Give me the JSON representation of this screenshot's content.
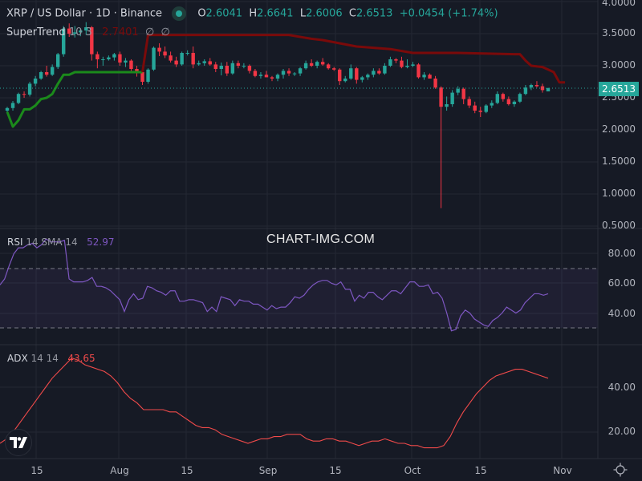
{
  "header": {
    "symbol_title": "XRP / US Dollar · 1D · Binance",
    "ohlc": {
      "open_label": "O",
      "open": "2.6041",
      "high_label": "H",
      "high": "2.6641",
      "low_label": "L",
      "low": "2.6006",
      "close_label": "C",
      "close": "2.6513",
      "change": "+0.0454 (+1.74%)"
    }
  },
  "indicators": {
    "supertrend": {
      "name": "SuperTrend",
      "params": "10 3",
      "value": "2.7401",
      "extra1": "∅",
      "extra2": "∅"
    },
    "rsi": {
      "name": "RSI",
      "params": "14 SMA 14",
      "value": "52.97"
    },
    "adx": {
      "name": "ADX",
      "params": "14 14",
      "value": "43.65"
    }
  },
  "price_axis": [
    "4.0000",
    "3.5000",
    "3.0000",
    "2.5000",
    "2.0000",
    "1.5000",
    "1.0000",
    "0.5000"
  ],
  "last_price_tag": "2.6513",
  "rsi_axis": [
    "80.00",
    "60.00",
    "40.00"
  ],
  "adx_axis": [
    "40.00",
    "20.00"
  ],
  "time_axis": [
    "15",
    "Aug",
    "15",
    "Sep",
    "15",
    "Oct",
    "15",
    "Nov"
  ],
  "watermark": "CHART-IMG.COM",
  "colors": {
    "up": "#26a69a",
    "down": "#f23645",
    "supertrend_up": "#1b8a1b",
    "supertrend_down": "#7a0a0a",
    "rsi": "#7e57c2",
    "adx": "#f04a4a",
    "background": "#161a25"
  },
  "chart_data": [
    {
      "type": "candlestick",
      "title": "XRP / US Dollar · 1D · Binance",
      "xlabel": "",
      "ylabel": "Price (USD)",
      "ylim": [
        0.5,
        4.0
      ],
      "x_ticks": [
        "15",
        "Aug",
        "15",
        "Sep",
        "15",
        "Oct",
        "15",
        "Nov"
      ],
      "last_close": 2.6513,
      "ohlc": [
        [
          2.3,
          2.36,
          2.25,
          2.34
        ],
        [
          2.34,
          2.45,
          2.3,
          2.42
        ],
        [
          2.42,
          2.58,
          2.4,
          2.56
        ],
        [
          2.56,
          2.6,
          2.5,
          2.55
        ],
        [
          2.55,
          2.75,
          2.52,
          2.72
        ],
        [
          2.72,
          2.84,
          2.68,
          2.8
        ],
        [
          2.8,
          2.92,
          2.78,
          2.9
        ],
        [
          2.9,
          3.0,
          2.83,
          2.86
        ],
        [
          2.86,
          3.02,
          2.84,
          2.98
        ],
        [
          2.98,
          3.2,
          2.95,
          3.18
        ],
        [
          3.18,
          3.62,
          3.14,
          3.58
        ],
        [
          3.58,
          3.66,
          3.45,
          3.5
        ],
        [
          3.5,
          3.62,
          3.44,
          3.52
        ],
        [
          3.52,
          3.58,
          3.46,
          3.55
        ],
        [
          3.55,
          3.68,
          3.48,
          3.6
        ],
        [
          3.6,
          3.62,
          3.08,
          3.18
        ],
        [
          3.18,
          3.22,
          2.96,
          3.1
        ],
        [
          3.1,
          3.14,
          3.0,
          3.1
        ],
        [
          3.1,
          3.16,
          3.08,
          3.13
        ],
        [
          3.13,
          3.2,
          3.08,
          3.18
        ],
        [
          3.18,
          3.22,
          3.0,
          3.05
        ],
        [
          3.05,
          3.12,
          2.98,
          3.08
        ],
        [
          3.08,
          3.1,
          2.92,
          2.95
        ],
        [
          2.95,
          3.0,
          2.83,
          2.9
        ],
        [
          2.9,
          2.98,
          2.7,
          2.75
        ],
        [
          2.75,
          2.96,
          2.72,
          2.94
        ],
        [
          2.94,
          3.3,
          2.92,
          3.28
        ],
        [
          3.28,
          3.35,
          3.15,
          3.22
        ],
        [
          3.22,
          3.3,
          3.12,
          3.16
        ],
        [
          3.16,
          3.22,
          3.05,
          3.08
        ],
        [
          3.08,
          3.14,
          2.98,
          3.02
        ],
        [
          3.02,
          3.22,
          3.0,
          3.2
        ],
        [
          3.2,
          3.24,
          3.16,
          3.2
        ],
        [
          3.2,
          3.3,
          2.96,
          3.02
        ],
        [
          3.02,
          3.08,
          3.0,
          3.04
        ],
        [
          3.04,
          3.1,
          3.0,
          3.07
        ],
        [
          3.07,
          3.12,
          3.0,
          3.02
        ],
        [
          3.02,
          3.06,
          2.9,
          2.95
        ],
        [
          2.95,
          3.05,
          2.85,
          3.0
        ],
        [
          3.0,
          3.06,
          2.84,
          2.88
        ],
        [
          2.88,
          3.08,
          2.86,
          3.04
        ],
        [
          3.04,
          3.08,
          2.96,
          3.0
        ],
        [
          3.0,
          3.04,
          2.96,
          3.0
        ],
        [
          3.0,
          3.02,
          2.88,
          2.92
        ],
        [
          2.92,
          2.95,
          2.82,
          2.84
        ],
        [
          2.84,
          2.9,
          2.8,
          2.86
        ],
        [
          2.86,
          2.92,
          2.82,
          2.82
        ],
        [
          2.82,
          2.84,
          2.76,
          2.8
        ],
        [
          2.8,
          2.88,
          2.76,
          2.86
        ],
        [
          2.86,
          2.95,
          2.8,
          2.92
        ],
        [
          2.92,
          2.96,
          2.84,
          2.88
        ],
        [
          2.88,
          2.9,
          2.84,
          2.88
        ],
        [
          2.88,
          2.98,
          2.84,
          2.96
        ],
        [
          2.96,
          3.08,
          2.94,
          3.04
        ],
        [
          3.04,
          3.1,
          2.98,
          3.0
        ],
        [
          3.0,
          3.08,
          2.96,
          3.06
        ],
        [
          3.06,
          3.12,
          3.0,
          3.02
        ],
        [
          3.02,
          3.04,
          2.94,
          2.96
        ],
        [
          2.96,
          2.98,
          2.92,
          2.94
        ],
        [
          2.94,
          2.96,
          2.7,
          2.76
        ],
        [
          2.76,
          2.84,
          2.74,
          2.8
        ],
        [
          2.8,
          3.02,
          2.78,
          2.96
        ],
        [
          2.96,
          2.98,
          2.72,
          2.78
        ],
        [
          2.78,
          2.84,
          2.74,
          2.82
        ],
        [
          2.82,
          2.88,
          2.78,
          2.86
        ],
        [
          2.86,
          2.96,
          2.82,
          2.92
        ],
        [
          2.92,
          2.96,
          2.86,
          2.88
        ],
        [
          2.88,
          3.04,
          2.86,
          3.0
        ],
        [
          3.0,
          3.14,
          2.98,
          3.1
        ],
        [
          3.1,
          3.12,
          3.04,
          3.08
        ],
        [
          3.08,
          3.14,
          2.96,
          2.98
        ],
        [
          2.98,
          3.1,
          2.96,
          3.0
        ],
        [
          3.0,
          3.06,
          2.98,
          3.02
        ],
        [
          3.02,
          3.04,
          2.8,
          2.82
        ],
        [
          2.82,
          2.9,
          2.78,
          2.86
        ],
        [
          2.86,
          2.88,
          2.8,
          2.8
        ],
        [
          2.8,
          2.84,
          2.64,
          2.66
        ],
        [
          2.66,
          2.68,
          0.78,
          2.36
        ],
        [
          2.36,
          2.52,
          2.3,
          2.4
        ],
        [
          2.4,
          2.62,
          2.36,
          2.58
        ],
        [
          2.58,
          2.68,
          2.54,
          2.64
        ],
        [
          2.64,
          2.66,
          2.4,
          2.48
        ],
        [
          2.48,
          2.52,
          2.34,
          2.38
        ],
        [
          2.38,
          2.44,
          2.26,
          2.3
        ],
        [
          2.3,
          2.36,
          2.2,
          2.28
        ],
        [
          2.28,
          2.4,
          2.26,
          2.38
        ],
        [
          2.38,
          2.46,
          2.34,
          2.42
        ],
        [
          2.42,
          2.6,
          2.4,
          2.56
        ],
        [
          2.56,
          2.58,
          2.44,
          2.48
        ],
        [
          2.48,
          2.52,
          2.38,
          2.4
        ],
        [
          2.4,
          2.46,
          2.36,
          2.44
        ],
        [
          2.44,
          2.58,
          2.42,
          2.56
        ],
        [
          2.56,
          2.7,
          2.54,
          2.66
        ],
        [
          2.66,
          2.72,
          2.62,
          2.7
        ],
        [
          2.7,
          2.76,
          2.66,
          2.68
        ],
        [
          2.68,
          2.72,
          2.58,
          2.62
        ],
        [
          2.6,
          2.66,
          2.6,
          2.65
        ]
      ],
      "supertrend": {
        "params": "10 3",
        "last_value": 2.7401,
        "segments": [
          {
            "trend": "up",
            "points": [
              [
                0,
                2.28
              ],
              [
                1,
                2.05
              ],
              [
                2,
                2.15
              ],
              [
                3,
                2.32
              ],
              [
                4,
                2.32
              ],
              [
                5,
                2.38
              ],
              [
                6,
                2.48
              ],
              [
                7,
                2.5
              ],
              [
                8,
                2.56
              ],
              [
                9,
                2.72
              ],
              [
                10,
                2.86
              ],
              [
                11,
                2.86
              ],
              [
                12,
                2.9
              ],
              [
                13,
                2.9
              ],
              [
                14,
                2.9
              ],
              [
                15,
                2.9
              ],
              [
                16,
                2.9
              ],
              [
                17,
                2.9
              ],
              [
                18,
                2.9
              ],
              [
                19,
                2.9
              ],
              [
                20,
                2.9
              ],
              [
                21,
                2.9
              ],
              [
                22,
                2.9
              ],
              [
                23,
                2.9
              ],
              [
                24,
                2.9
              ]
            ]
          },
          {
            "trend": "down",
            "points": [
              [
                24,
                2.9
              ],
              [
                25,
                3.48
              ],
              [
                26,
                3.48
              ],
              [
                40,
                3.48
              ],
              [
                45,
                3.48
              ],
              [
                50,
                3.48
              ],
              [
                54,
                3.42
              ],
              [
                56,
                3.4
              ],
              [
                62,
                3.3
              ],
              [
                68,
                3.26
              ],
              [
                72,
                3.2
              ],
              [
                80,
                3.2
              ],
              [
                90,
                3.18
              ],
              [
                91,
                3.18
              ],
              [
                92,
                3.08
              ],
              [
                93,
                3.0
              ],
              [
                95,
                2.98
              ],
              [
                96,
                2.94
              ],
              [
                97,
                2.9
              ],
              [
                98,
                2.74
              ],
              [
                108,
                2.74
              ],
              [
                112,
                2.74
              ]
            ]
          }
        ]
      }
    },
    {
      "type": "line",
      "title": "RSI 14 SMA 14",
      "ylim": [
        25,
        90
      ],
      "bands": [
        30,
        70
      ],
      "last_value": 52.97,
      "values": [
        59,
        63,
        72,
        80,
        84,
        84,
        86,
        87,
        84,
        86,
        90,
        88,
        88,
        88,
        89,
        63,
        61,
        61,
        61,
        62,
        64,
        58,
        58,
        57,
        55,
        52,
        49,
        41,
        49,
        53,
        49,
        50,
        58,
        57,
        55,
        54,
        52,
        55,
        55,
        48,
        48,
        49,
        49,
        48,
        47,
        41,
        44,
        41,
        51,
        50,
        49,
        45,
        49,
        48,
        48,
        46,
        46,
        44,
        42,
        45,
        43,
        44,
        44,
        47,
        51,
        50,
        52,
        56,
        59,
        61,
        62,
        62,
        60,
        59,
        61,
        56,
        56,
        48,
        52,
        50,
        54,
        54,
        51,
        49,
        52,
        55,
        55,
        53,
        57,
        61,
        61,
        58,
        58,
        59,
        53,
        54,
        50,
        40,
        28,
        29,
        38,
        42,
        40,
        36,
        34,
        32,
        31,
        35,
        37,
        40,
        44,
        42,
        40,
        42,
        47,
        50,
        53,
        53,
        52,
        53
      ]
    },
    {
      "type": "line",
      "title": "ADX 14 14",
      "ylim": [
        10,
        55
      ],
      "last_value": 43.65,
      "values": [
        15,
        17,
        20,
        24,
        28,
        32,
        36,
        40,
        44,
        47,
        50,
        53,
        52,
        50,
        49,
        48,
        47,
        45,
        42,
        38,
        35,
        33,
        30,
        30,
        30,
        30,
        29,
        29,
        27,
        25,
        23,
        22,
        22,
        21,
        19,
        18,
        17,
        16,
        15,
        16,
        17,
        17,
        18,
        18,
        19,
        19,
        19,
        17,
        16,
        16,
        17,
        17,
        16,
        16,
        15,
        14,
        15,
        16,
        16,
        17,
        16,
        15,
        15,
        14,
        14,
        13,
        13,
        13,
        14,
        18,
        24,
        29,
        33,
        37,
        40,
        43,
        45,
        46,
        47,
        48,
        48,
        47,
        46,
        45,
        44
      ]
    }
  ]
}
